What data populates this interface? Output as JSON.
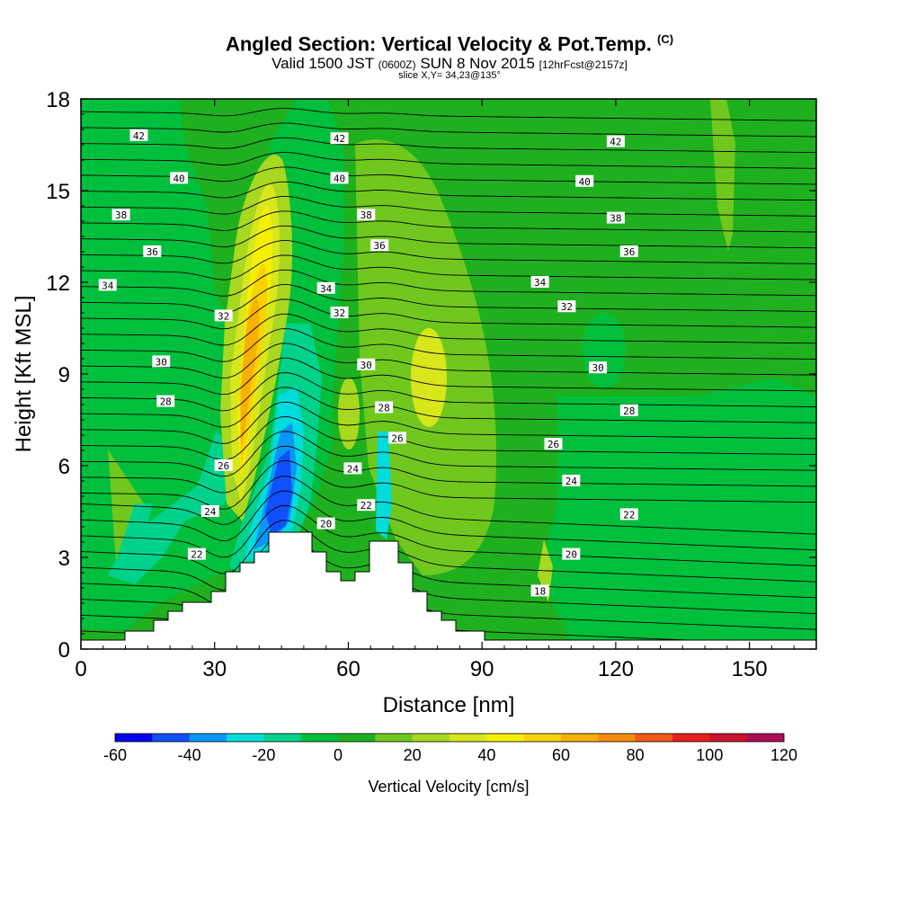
{
  "title": {
    "main": "Angled Section: Vertical Velocity & Pot.Temp.",
    "unit_tag": "(C)",
    "valid_a": "Valid 1500 JST",
    "valid_z": "(0600Z)",
    "valid_b": "SUN 8 Nov 2015",
    "fcst": "[12hrFcst@2157z]",
    "slice": "slice X,Y= 34,23@135°"
  },
  "chart_data": {
    "type": "heatmap",
    "xlabel": "Distance [nm]",
    "ylabel": "Height [Kft MSL]",
    "xlim": [
      0,
      165
    ],
    "ylim": [
      0,
      18
    ],
    "x_ticks": [
      "0",
      "30",
      "60",
      "90",
      "120",
      "150"
    ],
    "y_ticks": [
      "0",
      "3",
      "6",
      "9",
      "12",
      "15",
      "18"
    ],
    "colorbar": {
      "label": "Vertical Velocity [cm/s]",
      "tick_labels": [
        "-60",
        "-40",
        "-20",
        "0",
        "20",
        "40",
        "60",
        "80",
        "100",
        "120"
      ],
      "levels": [
        -60,
        -50,
        -40,
        -30,
        -20,
        -10,
        0,
        10,
        20,
        30,
        40,
        50,
        60,
        70,
        80,
        90,
        100,
        110,
        120
      ],
      "colors": [
        "#0000ee",
        "#1050ff",
        "#0a96f5",
        "#00dcdc",
        "#00d28c",
        "#00bf3c",
        "#1fb01f",
        "#70c81e",
        "#a8d820",
        "#d8e61c",
        "#f5f000",
        "#fad200",
        "#fab000",
        "#f58c10",
        "#f05a18",
        "#e61e1e",
        "#c8142d",
        "#aa0f55",
        "#82148c"
      ]
    },
    "theta_labels": [
      {
        "text": "42",
        "x": 13,
        "y": 16.8
      },
      {
        "text": "42",
        "x": 58,
        "y": 16.7
      },
      {
        "text": "42",
        "x": 120,
        "y": 16.6
      },
      {
        "text": "40",
        "x": 22,
        "y": 15.4
      },
      {
        "text": "40",
        "x": 58,
        "y": 15.4
      },
      {
        "text": "40",
        "x": 113,
        "y": 15.3
      },
      {
        "text": "38",
        "x": 9,
        "y": 14.2
      },
      {
        "text": "38",
        "x": 64,
        "y": 14.2
      },
      {
        "text": "38",
        "x": 120,
        "y": 14.1
      },
      {
        "text": "36",
        "x": 16,
        "y": 13
      },
      {
        "text": "36",
        "x": 67,
        "y": 13.2
      },
      {
        "text": "36",
        "x": 123,
        "y": 13
      },
      {
        "text": "34",
        "x": 6,
        "y": 11.9
      },
      {
        "text": "34",
        "x": 55,
        "y": 11.8
      },
      {
        "text": "34",
        "x": 103,
        "y": 12
      },
      {
        "text": "32",
        "x": 32,
        "y": 10.9
      },
      {
        "text": "32",
        "x": 58,
        "y": 11
      },
      {
        "text": "32",
        "x": 109,
        "y": 11.2
      },
      {
        "text": "30",
        "x": 18,
        "y": 9.4
      },
      {
        "text": "30",
        "x": 64,
        "y": 9.3
      },
      {
        "text": "30",
        "x": 116,
        "y": 9.2
      },
      {
        "text": "28",
        "x": 19,
        "y": 8.1
      },
      {
        "text": "28",
        "x": 68,
        "y": 7.9
      },
      {
        "text": "28",
        "x": 123,
        "y": 7.8
      },
      {
        "text": "26",
        "x": 32,
        "y": 6
      },
      {
        "text": "26",
        "x": 71,
        "y": 6.9
      },
      {
        "text": "26",
        "x": 106,
        "y": 6.7
      },
      {
        "text": "24",
        "x": 29,
        "y": 4.5
      },
      {
        "text": "24",
        "x": 61,
        "y": 5.9
      },
      {
        "text": "24",
        "x": 110,
        "y": 5.5
      },
      {
        "text": "22",
        "x": 26,
        "y": 3.1
      },
      {
        "text": "22",
        "x": 64,
        "y": 4.7
      },
      {
        "text": "22",
        "x": 123,
        "y": 4.4
      },
      {
        "text": "20",
        "x": 55,
        "y": 4.1
      },
      {
        "text": "20",
        "x": 110,
        "y": 3.1
      },
      {
        "text": "18",
        "x": 103,
        "y": 1.9
      }
    ]
  }
}
